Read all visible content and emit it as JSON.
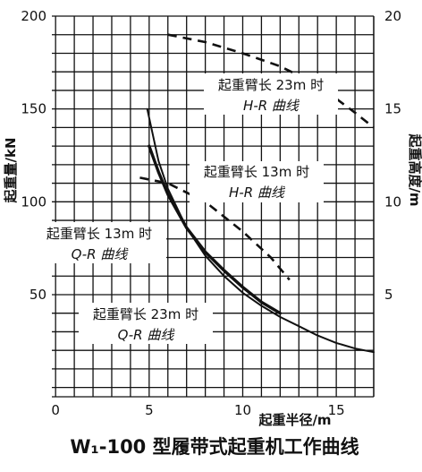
{
  "chart_data": {
    "type": "line",
    "title": "W₁-100 型履带式起重机工作曲线",
    "xlabel": "起重半径/m",
    "ylabel": "起重量/kN",
    "y2label": "起重高度/m",
    "xlim": [
      -0.2,
      17
    ],
    "ylim": [
      -5,
      200
    ],
    "y2lim": [
      -0.5,
      20
    ],
    "x_ticks": [
      "0",
      "5",
      "10",
      "15"
    ],
    "y_ticks": [
      "50",
      "100",
      "150",
      "200"
    ],
    "y2_ticks": [
      "5",
      "10",
      "15",
      "20"
    ],
    "grid": true,
    "series": [
      {
        "name": "起重臂长 23m 时 Q-R 曲线",
        "axis": "left",
        "style": "solid-thin",
        "x": [
          4.9,
          5.5,
          6.0,
          7.0,
          8.0,
          9.0,
          10.0,
          11.0,
          12.0,
          13.0,
          14.0,
          15.0,
          16.0,
          17.0
        ],
        "y": [
          150,
          122,
          107,
          86,
          71,
          60,
          51,
          44,
          38,
          33,
          28,
          24,
          21,
          19
        ]
      },
      {
        "name": "起重臂长 13m 时 Q-R 曲线",
        "axis": "left",
        "style": "solid-thick",
        "x": [
          5.0,
          5.5,
          6.0,
          7.0,
          8.0,
          9.0,
          10.0,
          11.0,
          12.0
        ],
        "y": [
          130,
          116,
          104,
          86,
          73,
          63,
          54,
          46,
          40
        ]
      },
      {
        "name": "起重臂长 23m 时 H-R 曲线",
        "axis": "right",
        "style": "dashed",
        "x": [
          6.0,
          8.0,
          10.0,
          12.0,
          14.0,
          16.0,
          17.0
        ],
        "y": [
          19.0,
          18.6,
          18.0,
          17.3,
          16.3,
          14.8,
          14.0
        ]
      },
      {
        "name": "起重臂长 13m 时 H-R 曲线",
        "axis": "right",
        "style": "dashed",
        "x": [
          4.5,
          6.0,
          8.0,
          10.0,
          11.5,
          12.5
        ],
        "y": [
          11.3,
          11.0,
          10.0,
          8.4,
          7.0,
          5.8
        ]
      }
    ],
    "annotations": [
      {
        "id": "ann-hr23",
        "lines": [
          "起重臂长 23m 时",
          "H-R 曲线"
        ]
      },
      {
        "id": "ann-hr13",
        "lines": [
          "起重臂长 13m 时",
          "H-R 曲线"
        ]
      },
      {
        "id": "ann-qr13",
        "lines": [
          "起重臂长 13m 时",
          "Q-R 曲线"
        ]
      },
      {
        "id": "ann-qr23",
        "lines": [
          "起重臂长 23m 时",
          "Q-R 曲线"
        ]
      }
    ]
  }
}
